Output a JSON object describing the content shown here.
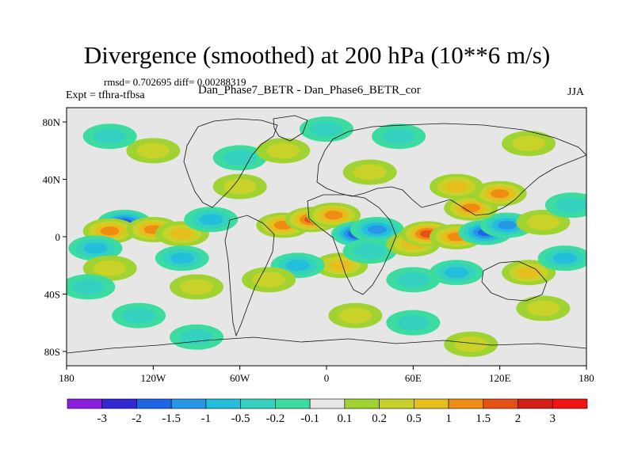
{
  "chart_data": {
    "type": "heatmap",
    "title": "Divergence (smoothed) at 200 hPa (10**6 m/s)",
    "stats_text": "rmsd= 0.702695 diff= 0.00288319",
    "left_label": "Expt = tfhra-tfbsa",
    "case_label": "Dan_Phase7_BETR - Dan_Phase6_BETR_cor",
    "season": "JJA",
    "xlim": [
      -180,
      180
    ],
    "ylim": [
      -90,
      90
    ],
    "x_ticks": [
      {
        "value": -180,
        "label": "180"
      },
      {
        "value": -120,
        "label": "120W"
      },
      {
        "value": -60,
        "label": "60W"
      },
      {
        "value": 0,
        "label": "0"
      },
      {
        "value": 60,
        "label": "60E"
      },
      {
        "value": 120,
        "label": "120E"
      },
      {
        "value": 180,
        "label": "180"
      }
    ],
    "y_ticks": [
      {
        "value": 80,
        "label": "80N"
      },
      {
        "value": 40,
        "label": "40N"
      },
      {
        "value": 0,
        "label": "0"
      },
      {
        "value": -40,
        "label": "40S"
      },
      {
        "value": -80,
        "label": "80S"
      }
    ],
    "colorbar": {
      "labels": [
        "-3",
        "-2",
        "-1.5",
        "-1",
        "-0.5",
        "-0.2",
        "-0.1",
        "0.1",
        "0.2",
        "0.5",
        "1",
        "1.5",
        "2",
        "3"
      ],
      "colors": [
        "#8c1ee0",
        "#3228d2",
        "#1e64e6",
        "#2896e6",
        "#22bedc",
        "#34d2be",
        "#3cdca0",
        "#e6e6e6",
        "#a0d232",
        "#c8d228",
        "#e6be1e",
        "#f08c14",
        "#e65014",
        "#d21e14",
        "#f01414"
      ]
    },
    "anomalies": [
      {
        "lon": -140,
        "lat": 10,
        "value": -2.0
      },
      {
        "lon": -150,
        "lat": 4,
        "value": 1.5
      },
      {
        "lon": -120,
        "lat": 5,
        "value": 1.5
      },
      {
        "lon": -100,
        "lat": 2,
        "value": 1.0
      },
      {
        "lon": -80,
        "lat": 12,
        "value": -1.0
      },
      {
        "lon": -160,
        "lat": -8,
        "value": -1.0
      },
      {
        "lon": -100,
        "lat": -15,
        "value": -1.0
      },
      {
        "lon": -150,
        "lat": -22,
        "value": 0.5
      },
      {
        "lon": -90,
        "lat": -35,
        "value": 0.5
      },
      {
        "lon": -130,
        "lat": -55,
        "value": -0.5
      },
      {
        "lon": -60,
        "lat": 35,
        "value": 0.5
      },
      {
        "lon": -60,
        "lat": 55,
        "value": -0.5
      },
      {
        "lon": -120,
        "lat": 60,
        "value": 0.5
      },
      {
        "lon": -150,
        "lat": 70,
        "value": -0.5
      },
      {
        "lon": -30,
        "lat": 8,
        "value": 1.5
      },
      {
        "lon": -10,
        "lat": 12,
        "value": 2.0
      },
      {
        "lon": 5,
        "lat": 15,
        "value": 1.5
      },
      {
        "lon": 22,
        "lat": 2,
        "value": -3.0
      },
      {
        "lon": 35,
        "lat": 5,
        "value": -1.5
      },
      {
        "lon": 10,
        "lat": -20,
        "value": 1.0
      },
      {
        "lon": 30,
        "lat": -10,
        "value": -0.5
      },
      {
        "lon": -20,
        "lat": -20,
        "value": -1.0
      },
      {
        "lon": -40,
        "lat": -30,
        "value": 0.5
      },
      {
        "lon": 60,
        "lat": -5,
        "value": 1.0
      },
      {
        "lon": 70,
        "lat": 2,
        "value": 2.0
      },
      {
        "lon": 90,
        "lat": 0,
        "value": 1.5
      },
      {
        "lon": 110,
        "lat": 3,
        "value": -2.0
      },
      {
        "lon": 125,
        "lat": 8,
        "value": -1.5
      },
      {
        "lon": 100,
        "lat": 20,
        "value": 1.5
      },
      {
        "lon": 120,
        "lat": 30,
        "value": 1.5
      },
      {
        "lon": 90,
        "lat": 35,
        "value": 1.0
      },
      {
        "lon": 150,
        "lat": 10,
        "value": 0.5
      },
      {
        "lon": 170,
        "lat": 22,
        "value": -0.5
      },
      {
        "lon": 90,
        "lat": -25,
        "value": -1.0
      },
      {
        "lon": 60,
        "lat": -30,
        "value": -0.5
      },
      {
        "lon": 140,
        "lat": -25,
        "value": 1.0
      },
      {
        "lon": 150,
        "lat": -50,
        "value": 0.5
      },
      {
        "lon": 20,
        "lat": -55,
        "value": 0.5
      },
      {
        "lon": 60,
        "lat": -60,
        "value": -0.5
      },
      {
        "lon": 30,
        "lat": 45,
        "value": 0.5
      },
      {
        "lon": 50,
        "lat": 70,
        "value": -0.5
      },
      {
        "lon": 140,
        "lat": 65,
        "value": 0.5
      },
      {
        "lon": -30,
        "lat": 60,
        "value": 0.5
      },
      {
        "lon": 0,
        "lat": 75,
        "value": -0.5
      },
      {
        "lon": -90,
        "lat": -70,
        "value": -0.5
      },
      {
        "lon": 100,
        "lat": -75,
        "value": 0.5
      },
      {
        "lon": -165,
        "lat": -35,
        "value": -0.5
      },
      {
        "lon": 165,
        "lat": -15,
        "value": -1.0
      }
    ]
  }
}
